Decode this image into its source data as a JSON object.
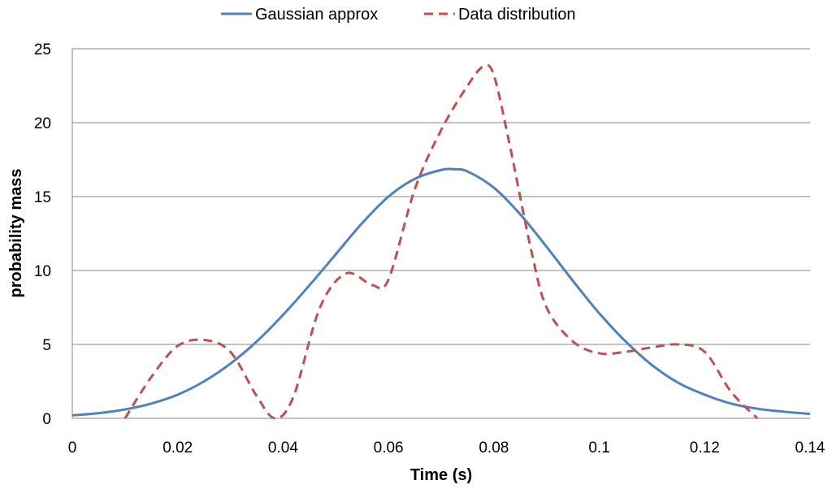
{
  "chart_data": {
    "type": "line",
    "title": "",
    "xlabel": "Time (s)",
    "ylabel": "probability mass",
    "xlim": [
      0,
      0.14
    ],
    "ylim": [
      0,
      25
    ],
    "x_ticks": [
      0,
      0.02,
      0.04,
      0.06,
      0.08,
      0.1,
      0.12,
      0.14
    ],
    "x_tick_labels": [
      "0",
      "0.02",
      "0.04",
      "0.06",
      "0.08",
      "0.1",
      "0.12",
      "0.14"
    ],
    "y_ticks": [
      0,
      5,
      10,
      15,
      20,
      25
    ],
    "y_tick_labels": [
      "0",
      "5",
      "10",
      "15",
      "20",
      "25"
    ],
    "grid": "horizontal",
    "legend_position": "top-center",
    "series": [
      {
        "name": "Gaussian approx",
        "color": "#4F81BD",
        "style": "solid",
        "x": [
          0,
          0.005,
          0.01,
          0.015,
          0.02,
          0.025,
          0.03,
          0.035,
          0.04,
          0.045,
          0.05,
          0.055,
          0.06,
          0.065,
          0.07,
          0.0725,
          0.075,
          0.08,
          0.085,
          0.09,
          0.095,
          0.1,
          0.105,
          0.11,
          0.115,
          0.12,
          0.125,
          0.13,
          0.135,
          0.14
        ],
        "y": [
          0.2,
          0.35,
          0.6,
          1.0,
          1.6,
          2.5,
          3.7,
          5.2,
          7.0,
          9.0,
          11.1,
          13.2,
          15.0,
          16.2,
          16.8,
          16.85,
          16.7,
          15.6,
          13.8,
          11.6,
          9.3,
          7.1,
          5.2,
          3.6,
          2.4,
          1.6,
          1.0,
          0.65,
          0.45,
          0.3
        ]
      },
      {
        "name": "Data distribution",
        "color": "#C0504D",
        "style": "dashed",
        "x": [
          0.01,
          0.015,
          0.02,
          0.025,
          0.03,
          0.035,
          0.0385,
          0.042,
          0.047,
          0.052,
          0.057,
          0.06,
          0.065,
          0.07,
          0.075,
          0.078,
          0.08,
          0.083,
          0.087,
          0.09,
          0.095,
          0.1,
          0.105,
          0.11,
          0.115,
          0.12,
          0.125,
          0.13
        ],
        "y": [
          0,
          2.8,
          4.9,
          5.3,
          4.5,
          1.5,
          0,
          1.5,
          7.5,
          9.8,
          9.0,
          9.4,
          15.5,
          19.5,
          22.5,
          23.8,
          23.2,
          18.5,
          11.5,
          7.5,
          5.2,
          4.4,
          4.5,
          4.8,
          5.0,
          4.5,
          1.8,
          0
        ]
      }
    ]
  }
}
